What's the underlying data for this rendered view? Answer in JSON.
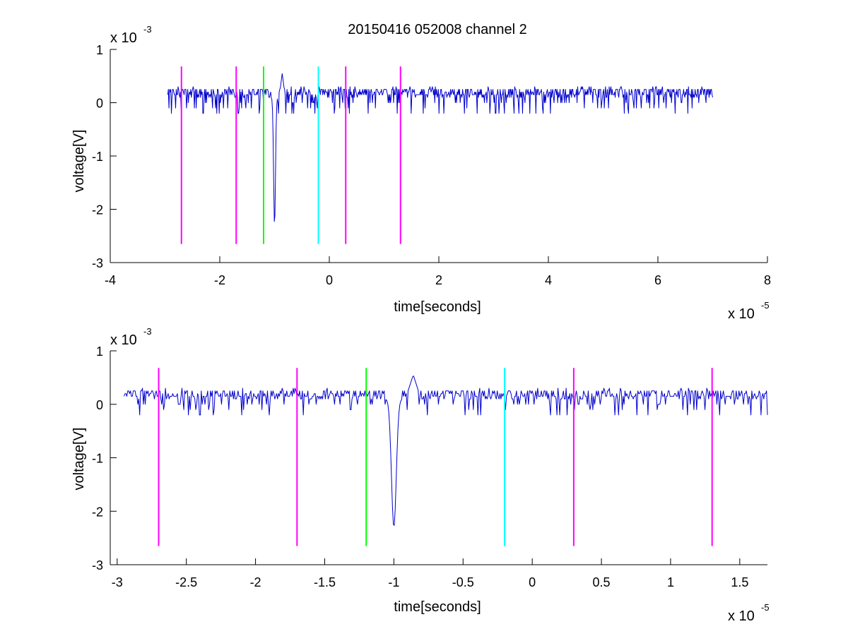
{
  "figure_title": "20150416 052008 channel 2",
  "chart_data": [
    {
      "type": "line",
      "id": "top",
      "xlabel": "time[seconds]",
      "ylabel": "voltage[V]",
      "x_multiplier": "x 10",
      "x_exponent": "-5",
      "y_multiplier": "x 10",
      "y_exponent": "-3",
      "xlim": [
        -4,
        8
      ],
      "ylim": [
        -3,
        1
      ],
      "xticks": [
        -4,
        -2,
        0,
        2,
        4,
        6,
        8
      ],
      "xtick_labels": [
        "-4",
        "-2",
        "0",
        "2",
        "4",
        "6",
        "8"
      ],
      "yticks": [
        -3,
        -2,
        -1,
        0,
        1
      ],
      "ytick_labels": [
        "-3",
        "-2",
        "-1",
        "0",
        "1"
      ],
      "signal_color": "#0000cc",
      "signal_range_x": [
        -2.95,
        7.0
      ],
      "vlines": [
        {
          "x": -2.7,
          "color": "#ff00ff",
          "y": [
            -2.65,
            0.68
          ]
        },
        {
          "x": -1.7,
          "color": "#ff00ff",
          "y": [
            -2.65,
            0.68
          ]
        },
        {
          "x": -1.2,
          "color": "#00ff00",
          "y": [
            -2.65,
            0.68
          ]
        },
        {
          "x": -0.2,
          "color": "#00ffff",
          "y": [
            -2.65,
            0.68
          ]
        },
        {
          "x": 0.3,
          "color": "#ff00ff",
          "y": [
            -2.65,
            0.68
          ]
        },
        {
          "x": 1.3,
          "color": "#ff00ff",
          "y": [
            -2.65,
            0.68
          ]
        }
      ]
    },
    {
      "type": "line",
      "id": "bottom",
      "xlabel": "time[seconds]",
      "ylabel": "voltage[V]",
      "x_multiplier": "x 10",
      "x_exponent": "-5",
      "y_multiplier": "x 10",
      "y_exponent": "-3",
      "xlim": [
        -3.05,
        1.7
      ],
      "ylim": [
        -3,
        1
      ],
      "xticks": [
        -3,
        -2.5,
        -2,
        -1.5,
        -1,
        -0.5,
        0,
        0.5,
        1,
        1.5
      ],
      "xtick_labels": [
        "-3",
        "-2.5",
        "-2",
        "-1.5",
        "-1",
        "-0.5",
        "0",
        "0.5",
        "1",
        "1.5"
      ],
      "yticks": [
        -3,
        -2,
        -1,
        0,
        1
      ],
      "ytick_labels": [
        "-3",
        "-2",
        "-1",
        "0",
        "1"
      ],
      "signal_color": "#0000cc",
      "signal_range_x": [
        -2.95,
        1.7
      ],
      "vlines": [
        {
          "x": -2.7,
          "color": "#ff00ff",
          "y": [
            -2.65,
            0.68
          ]
        },
        {
          "x": -1.7,
          "color": "#ff00ff",
          "y": [
            -2.65,
            0.68
          ]
        },
        {
          "x": -1.2,
          "color": "#00ff00",
          "y": [
            -2.65,
            0.68
          ]
        },
        {
          "x": -0.2,
          "color": "#00ffff",
          "y": [
            -2.65,
            0.68
          ]
        },
        {
          "x": 0.3,
          "color": "#ff00ff",
          "y": [
            -2.65,
            0.68
          ]
        },
        {
          "x": 1.3,
          "color": "#ff00ff",
          "y": [
            -2.65,
            0.68
          ]
        }
      ]
    }
  ]
}
